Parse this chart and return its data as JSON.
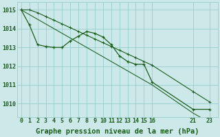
{
  "bg_color": "#cce8e8",
  "grid_color": "#99cccc",
  "line_color": "#1a5c1a",
  "xlabel": "Graphe pression niveau de la mer (hPa)",
  "xlabel_fontsize": 7.5,
  "tick_fontsize": 6.0,
  "line1_x": [
    0,
    1,
    2,
    3,
    4,
    5,
    6,
    7,
    8,
    9,
    10,
    11,
    12,
    13,
    14,
    15,
    16,
    21,
    23
  ],
  "line1_y": [
    1015.0,
    1014.2,
    1013.15,
    1013.05,
    1013.0,
    1013.0,
    1013.35,
    1013.6,
    1013.85,
    1013.75,
    1013.55,
    1013.15,
    1012.55,
    1012.25,
    1012.1,
    1012.1,
    1011.15,
    1009.7,
    1009.7
  ],
  "line2_x": [
    0,
    1,
    2,
    3,
    4,
    5,
    6,
    7,
    8,
    9,
    10,
    11,
    12,
    13,
    14,
    15,
    16,
    21,
    23
  ],
  "line2_y": [
    1015.0,
    1015.0,
    1014.85,
    1014.65,
    1014.45,
    1014.25,
    1014.05,
    1013.85,
    1013.65,
    1013.45,
    1013.25,
    1013.05,
    1012.85,
    1012.65,
    1012.45,
    1012.25,
    1012.05,
    1010.65,
    1010.1
  ],
  "line3_x": [
    0,
    1,
    2,
    3,
    4,
    5,
    6,
    7,
    8,
    9,
    10,
    11,
    12,
    13,
    14,
    15,
    16,
    21,
    23
  ],
  "line3_y": [
    1015.0,
    1014.75,
    1014.5,
    1014.25,
    1014.0,
    1013.75,
    1013.5,
    1013.25,
    1013.0,
    1012.75,
    1012.5,
    1012.25,
    1012.0,
    1011.75,
    1011.5,
    1011.25,
    1011.0,
    1009.5,
    1009.0
  ],
  "xtick_positions": [
    0,
    1,
    2,
    3,
    4,
    5,
    6,
    7,
    8,
    9,
    10,
    11,
    12,
    13,
    14,
    15,
    16,
    21,
    23
  ],
  "xtick_labels": [
    "0",
    "1",
    "2",
    "3",
    "4",
    "5",
    "6",
    "7",
    "8",
    "9",
    "10",
    "11",
    "12",
    "13",
    "14",
    "15",
    "16",
    "21",
    "23"
  ],
  "yticks": [
    1010,
    1011,
    1012,
    1013,
    1014,
    1015
  ],
  "ylim": [
    1009.3,
    1015.4
  ],
  "xlim": [
    -0.5,
    24.0
  ]
}
